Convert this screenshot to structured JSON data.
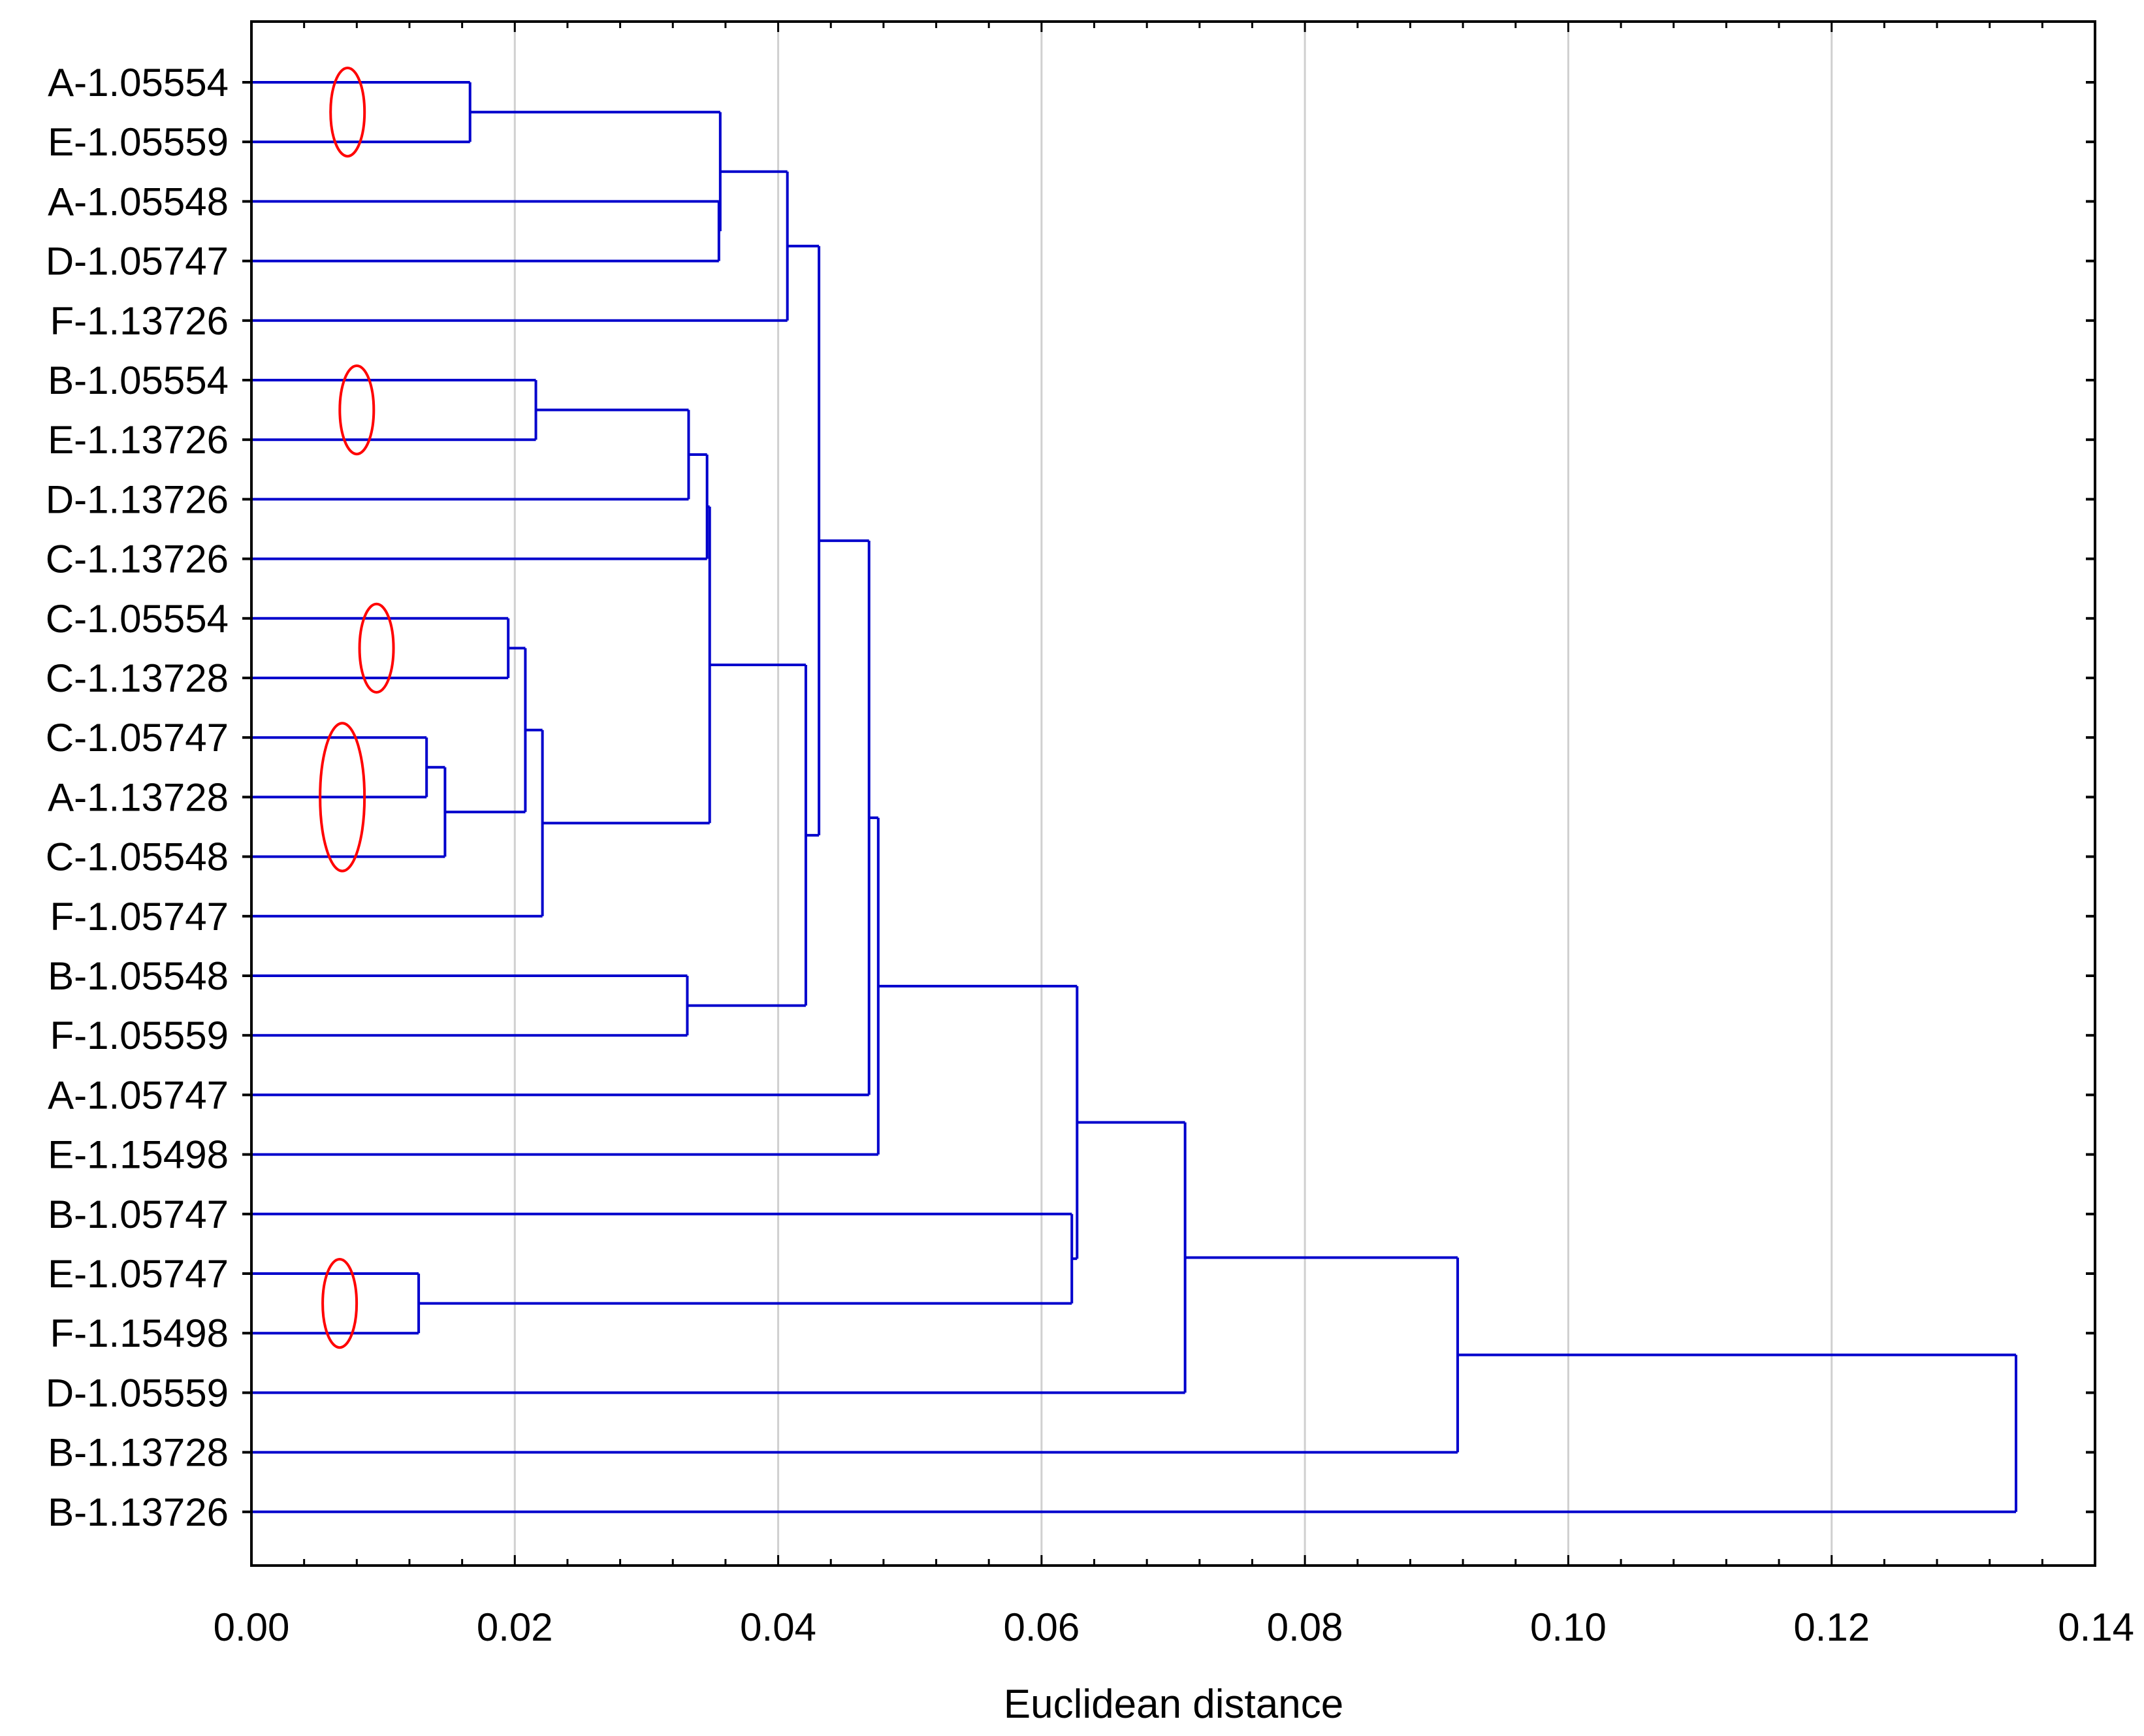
{
  "chart_data": {
    "type": "dendrogram",
    "title": "",
    "xlabel": "Euclidean distance",
    "ylabel": "",
    "xlim": [
      0.0,
      0.14
    ],
    "x_ticks": [
      "0.00",
      "0.02",
      "0.04",
      "0.06",
      "0.08",
      "0.10",
      "0.12",
      "0.14"
    ],
    "grid": "vertical",
    "leaves": [
      "A-1.05554",
      "E-1.05559",
      "A-1.05548",
      "D-1.05747",
      "F-1.13726",
      "B-1.05554",
      "E-1.13726",
      "D-1.13726",
      "C-1.13726",
      "C-1.05554",
      "C-1.13728",
      "C-1.05747",
      "A-1.13728",
      "C-1.05548",
      "F-1.05747",
      "B-1.05548",
      "F-1.05559",
      "A-1.05747",
      "E-1.15498",
      "B-1.05747",
      "E-1.05747",
      "F-1.15498",
      "D-1.05559",
      "B-1.13728",
      "B-1.13726"
    ],
    "merges": [
      {
        "id": "n1",
        "left": "A-1.05554",
        "right": "E-1.05559",
        "distance": 0.0166
      },
      {
        "id": "n2",
        "left": "A-1.05548",
        "right": "D-1.05747",
        "distance": 0.0355
      },
      {
        "id": "n3",
        "left": "n1",
        "right": "n2",
        "distance": 0.0356
      },
      {
        "id": "n4",
        "left": "n3",
        "right": "F-1.13726",
        "distance": 0.0407
      },
      {
        "id": "n5",
        "left": "B-1.05554",
        "right": "E-1.13726",
        "distance": 0.0216
      },
      {
        "id": "n6",
        "left": "n5",
        "right": "D-1.13726",
        "distance": 0.0332
      },
      {
        "id": "n7",
        "left": "n6",
        "right": "C-1.13726",
        "distance": 0.0346
      },
      {
        "id": "n8",
        "left": "C-1.05554",
        "right": "C-1.13728",
        "distance": 0.0195
      },
      {
        "id": "n9",
        "left": "C-1.05747",
        "right": "A-1.13728",
        "distance": 0.0133
      },
      {
        "id": "n10",
        "left": "n9",
        "right": "C-1.05548",
        "distance": 0.0147
      },
      {
        "id": "n11",
        "left": "n8",
        "right": "n10",
        "distance": 0.0208
      },
      {
        "id": "n12",
        "left": "n11",
        "right": "F-1.05747",
        "distance": 0.0221
      },
      {
        "id": "n13",
        "left": "n7",
        "right": "n12",
        "distance": 0.0348
      },
      {
        "id": "n14",
        "left": "B-1.05548",
        "right": "F-1.05559",
        "distance": 0.0331
      },
      {
        "id": "n15",
        "left": "n13",
        "right": "n14",
        "distance": 0.0421
      },
      {
        "id": "n16",
        "left": "n4",
        "right": "n15",
        "distance": 0.0431
      },
      {
        "id": "n17",
        "left": "n16",
        "right": "A-1.05747",
        "distance": 0.0469
      },
      {
        "id": "n18",
        "left": "n17",
        "right": "E-1.15498",
        "distance": 0.0476
      },
      {
        "id": "n19",
        "left": "E-1.05747",
        "right": "F-1.15498",
        "distance": 0.0127
      },
      {
        "id": "n20",
        "left": "B-1.05747",
        "right": "n19",
        "distance": 0.0623
      },
      {
        "id": "n21",
        "left": "n18",
        "right": "n20",
        "distance": 0.0627
      },
      {
        "id": "n22",
        "left": "n21",
        "right": "D-1.05559",
        "distance": 0.0709
      },
      {
        "id": "n23",
        "left": "n22",
        "right": "B-1.13728",
        "distance": 0.0916
      },
      {
        "id": "n24",
        "left": "n23",
        "right": "B-1.13726",
        "distance": 0.134
      }
    ],
    "highlights": [
      {
        "leaves": [
          "A-1.05554",
          "E-1.05559"
        ],
        "at": 0.0073,
        "color": "#ff0000"
      },
      {
        "leaves": [
          "B-1.05554",
          "E-1.13726"
        ],
        "at": 0.008,
        "color": "#ff0000"
      },
      {
        "leaves": [
          "C-1.05554",
          "C-1.13728"
        ],
        "at": 0.0095,
        "color": "#ff0000"
      },
      {
        "leaves": [
          "C-1.05747",
          "A-1.13728",
          "C-1.05548"
        ],
        "at": 0.0069,
        "color": "#ff0000"
      },
      {
        "leaves": [
          "E-1.05747",
          "F-1.15498"
        ],
        "at": 0.0067,
        "color": "#ff0000"
      }
    ],
    "colors": {
      "branch": "#0000cc",
      "grid": "#d0d0d0",
      "axis": "#000000",
      "highlight": "#ff0000"
    }
  }
}
